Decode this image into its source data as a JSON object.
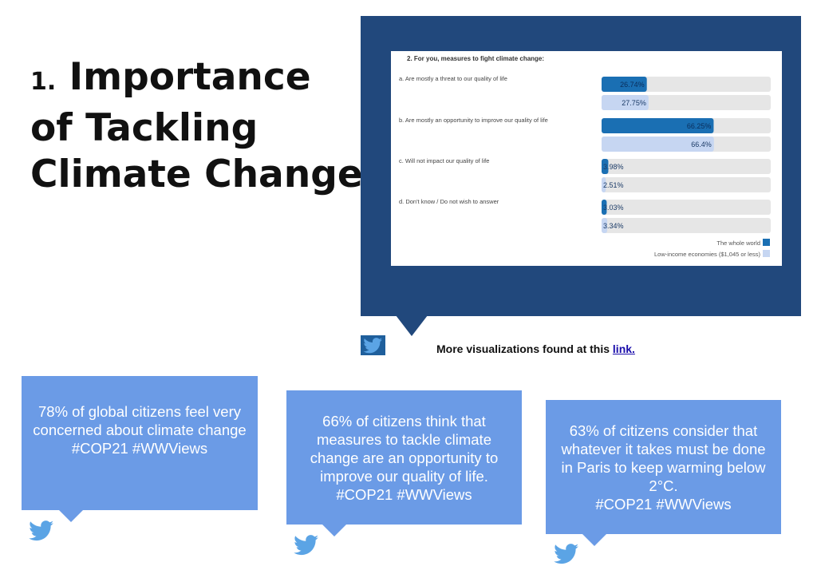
{
  "title": {
    "number": "1.",
    "text": "Importance of Tackling Climate Change"
  },
  "chart_data": {
    "type": "bar",
    "title": "2. For you, measures to fight climate change:",
    "categories": [
      "a. Are mostly a threat to our quality of life",
      "b. Are mostly an opportunity to improve our quality of life",
      "c. Will not impact our quality of life",
      "d. Don't know / Do not wish to answer"
    ],
    "series": [
      {
        "name": "The whole world",
        "values": [
          26.74,
          66.25,
          3.98,
          3.03
        ],
        "labels": [
          "26.74%",
          "66.25%",
          "3.98%",
          "3.03%"
        ],
        "color": "#1a6fb3"
      },
      {
        "name": "Low-income economies ($1,045 or less)",
        "values": [
          27.75,
          66.4,
          2.51,
          3.34
        ],
        "labels": [
          "27.75%",
          "66.4%",
          "2.51%",
          "3.34%"
        ],
        "color": "#c6d6f2"
      }
    ],
    "xlim": [
      0,
      100
    ],
    "legend": "bottom-right"
  },
  "more": {
    "text": "More visualizations found at this",
    "link_label": "link."
  },
  "tweets": [
    {
      "text": "78% of global citizens feel very concerned about climate change\n#COP21 #WWViews"
    },
    {
      "text": "66% of citizens think that measures to tackle climate change are an opportunity to improve our quality of life.\n#COP21 #WWViews"
    },
    {
      "text": "63% of citizens consider that whatever it takes must be done in Paris to keep warming below 2°C.\n#COP21 #WWViews"
    }
  ],
  "colors": {
    "panel": "#21487c",
    "tweet_box": "#6b9be6",
    "twitter_icon": "#5ba4e5",
    "twitter_icon_box": "#1f5f9c"
  },
  "icons": {
    "twitter": "twitter-bird-icon"
  }
}
